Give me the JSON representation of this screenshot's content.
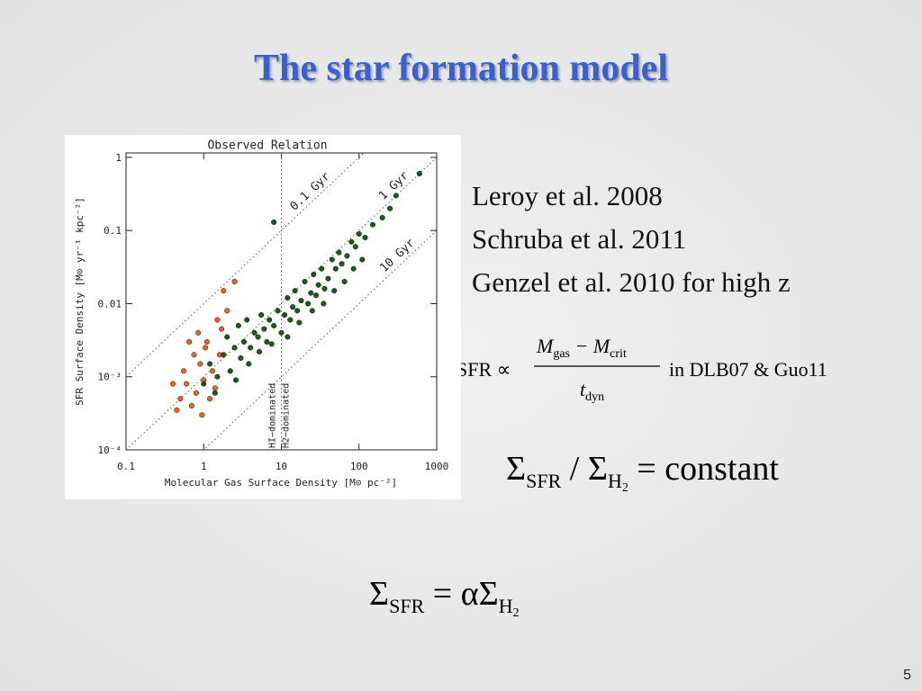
{
  "slide": {
    "title": "The star formation model",
    "page_number": "5"
  },
  "references": [
    "Leroy et al. 2008",
    "Schruba et al. 2011",
    "Genzel et al. 2010 for high z"
  ],
  "equation_1": {
    "lhs": "SFR ∝",
    "numerator": [
      "M",
      "gas",
      " − M",
      "crit"
    ],
    "denominator": [
      "t",
      "dyn"
    ],
    "note": "in DLB07 & Guo11"
  },
  "equation_2": [
    "Σ",
    "SFR",
    " / Σ",
    "H",
    "2",
    " = constant"
  ],
  "equation_3": [
    "Σ",
    "SFR",
    " = αΣ",
    "H",
    "2"
  ],
  "chart_data": {
    "type": "scatter",
    "title": "Observed Relation",
    "x_label": "Molecular Gas Surface Density [M⊙ pc⁻²]",
    "y_label": "SFR Surface Density [M⊙ yr⁻¹ kpc⁻²]",
    "log_x": true,
    "log_y": true,
    "xlim": [
      0.1,
      1000
    ],
    "ylim": [
      0.0001,
      1.15
    ],
    "xticks": [
      0.1,
      1,
      10,
      100,
      1000
    ],
    "yticks": [
      {
        "value": 0.0001,
        "label": "10⁻⁴"
      },
      {
        "value": 0.001,
        "label": "10⁻³"
      },
      0.01,
      0.1,
      1
    ],
    "depletion_lines": [
      {
        "value": 0.1,
        "label": "0.1 Gyr"
      },
      {
        "value": 1,
        "label": "1 Gyr"
      },
      {
        "value": 10,
        "label": "10 Gyr"
      }
    ],
    "divide_x": 10,
    "divide_labels": [
      "HI−dominated",
      "H2−dominated"
    ],
    "series": [
      {
        "color": "#e0662a",
        "x": [
          0.45,
          0.5,
          0.55,
          0.6,
          0.7,
          0.75,
          0.8,
          0.9,
          1.0,
          1.1,
          1.2,
          1.3,
          1.5,
          1.6,
          1.8,
          2.0,
          0.65,
          0.95,
          1.4,
          2.5,
          0.85,
          1.05,
          0.4,
          1.7
        ],
        "values": [
          0.00035,
          0.0005,
          0.0012,
          0.0008,
          0.0004,
          0.002,
          0.0006,
          0.0015,
          0.0009,
          0.003,
          0.0005,
          0.0012,
          0.006,
          0.002,
          0.015,
          0.008,
          0.003,
          0.0003,
          0.0007,
          0.02,
          0.004,
          0.0025,
          0.0008,
          0.0045
        ]
      },
      {
        "color": "#1a5a1a",
        "x": [
          1.0,
          1.2,
          1.5,
          1.8,
          2.0,
          2.2,
          2.5,
          2.8,
          3.0,
          3.3,
          3.6,
          4.0,
          4.5,
          5.0,
          5.5,
          6.0,
          6.5,
          7.0,
          8.0,
          9.0,
          10,
          11,
          12,
          13,
          14,
          15,
          16,
          18,
          20,
          22,
          24,
          26,
          28,
          30,
          33,
          36,
          40,
          45,
          50,
          55,
          60,
          70,
          80,
          90,
          100,
          120,
          150,
          200,
          250,
          300,
          600,
          8,
          1.4,
          2.6,
          3.8,
          5.2,
          7.5,
          12,
          17,
          25,
          35,
          48,
          65,
          85,
          110
        ],
        "values": [
          0.0008,
          0.0015,
          0.001,
          0.002,
          0.0035,
          0.0012,
          0.0025,
          0.005,
          0.0018,
          0.003,
          0.006,
          0.0025,
          0.004,
          0.0035,
          0.007,
          0.0045,
          0.003,
          0.006,
          0.005,
          0.008,
          0.004,
          0.007,
          0.012,
          0.006,
          0.009,
          0.015,
          0.008,
          0.011,
          0.02,
          0.01,
          0.014,
          0.025,
          0.013,
          0.018,
          0.03,
          0.016,
          0.022,
          0.04,
          0.03,
          0.05,
          0.035,
          0.045,
          0.07,
          0.06,
          0.09,
          0.08,
          0.12,
          0.15,
          0.2,
          0.3,
          0.6,
          0.13,
          0.0006,
          0.0009,
          0.0015,
          0.0022,
          0.0028,
          0.0035,
          0.0055,
          0.008,
          0.01,
          0.015,
          0.02,
          0.03,
          0.04
        ]
      }
    ]
  }
}
